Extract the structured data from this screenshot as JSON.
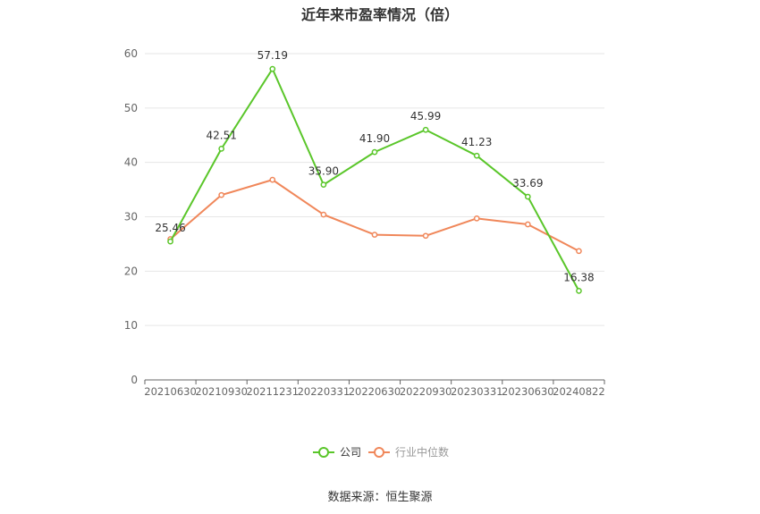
{
  "chart_data": {
    "type": "line",
    "title": "近年来市盈率情况（倍）",
    "categories": [
      "20210630",
      "20210930",
      "20211231",
      "20220331",
      "20220630",
      "20220930",
      "20230331",
      "20230630",
      "20240822"
    ],
    "series": [
      {
        "name": "公司",
        "color": "#5ac62a",
        "values": [
          25.46,
          42.51,
          57.19,
          35.9,
          41.9,
          45.99,
          41.23,
          33.69,
          16.38
        ],
        "labels": [
          "25.46",
          "42.51",
          "57.19",
          "35.90",
          "41.90",
          "45.99",
          "41.23",
          "33.69",
          "16.38"
        ]
      },
      {
        "name": "行业中位数",
        "color": "#f0875a",
        "values": [
          25.9,
          34.0,
          36.8,
          30.4,
          26.7,
          26.5,
          29.7,
          28.6,
          23.7
        ]
      }
    ],
    "ylim": [
      0,
      60
    ],
    "yticks": [
      0,
      10,
      20,
      30,
      40,
      50,
      60
    ],
    "grid": true,
    "legend": "bottom-center"
  },
  "source_text": "数据来源：恒生聚源"
}
